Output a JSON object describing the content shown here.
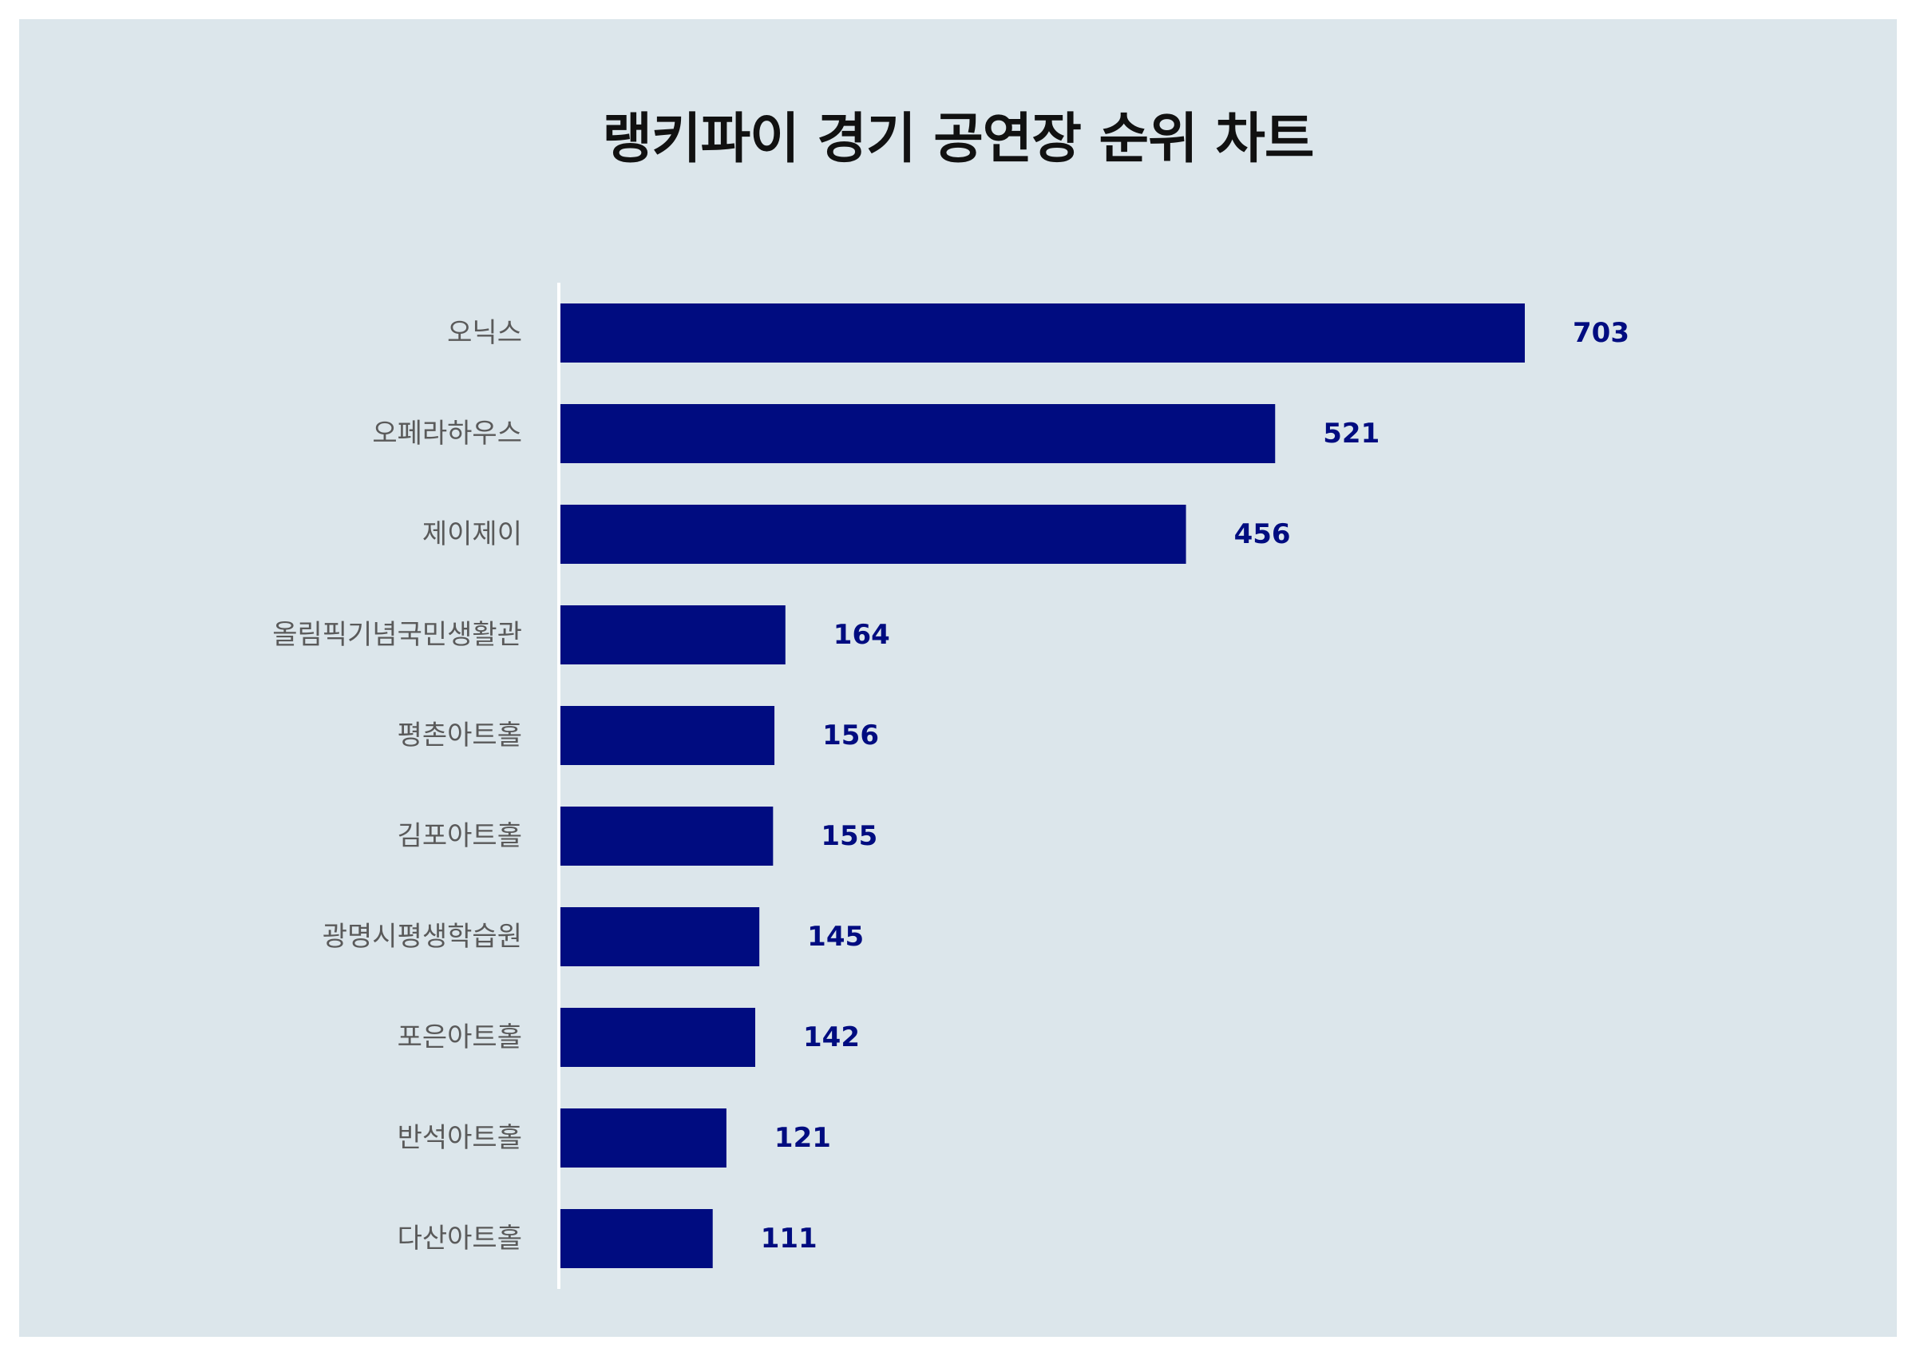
{
  "title": "랭키파이 경기 공연장 순위 차트",
  "colors": {
    "bar": "#000c80",
    "value_label": "#000c80",
    "background": "#dce6eb",
    "axis_line": "#ffffff"
  },
  "chart_data": {
    "type": "bar",
    "orientation": "horizontal",
    "title": "랭키파이 경기 공연장 순위 차트",
    "xlabel": "",
    "ylabel": "",
    "xlim": [
      0,
      703
    ],
    "grid": false,
    "legend": "none",
    "categories": [
      "오닉스",
      "오페라하우스",
      "제이제이",
      "올림픽기념국민생활관",
      "평촌아트홀",
      "김포아트홀",
      "광명시평생학습원",
      "포은아트홀",
      "반석아트홀",
      "다산아트홀"
    ],
    "values": [
      703,
      521,
      456,
      164,
      156,
      155,
      145,
      142,
      121,
      111
    ]
  }
}
